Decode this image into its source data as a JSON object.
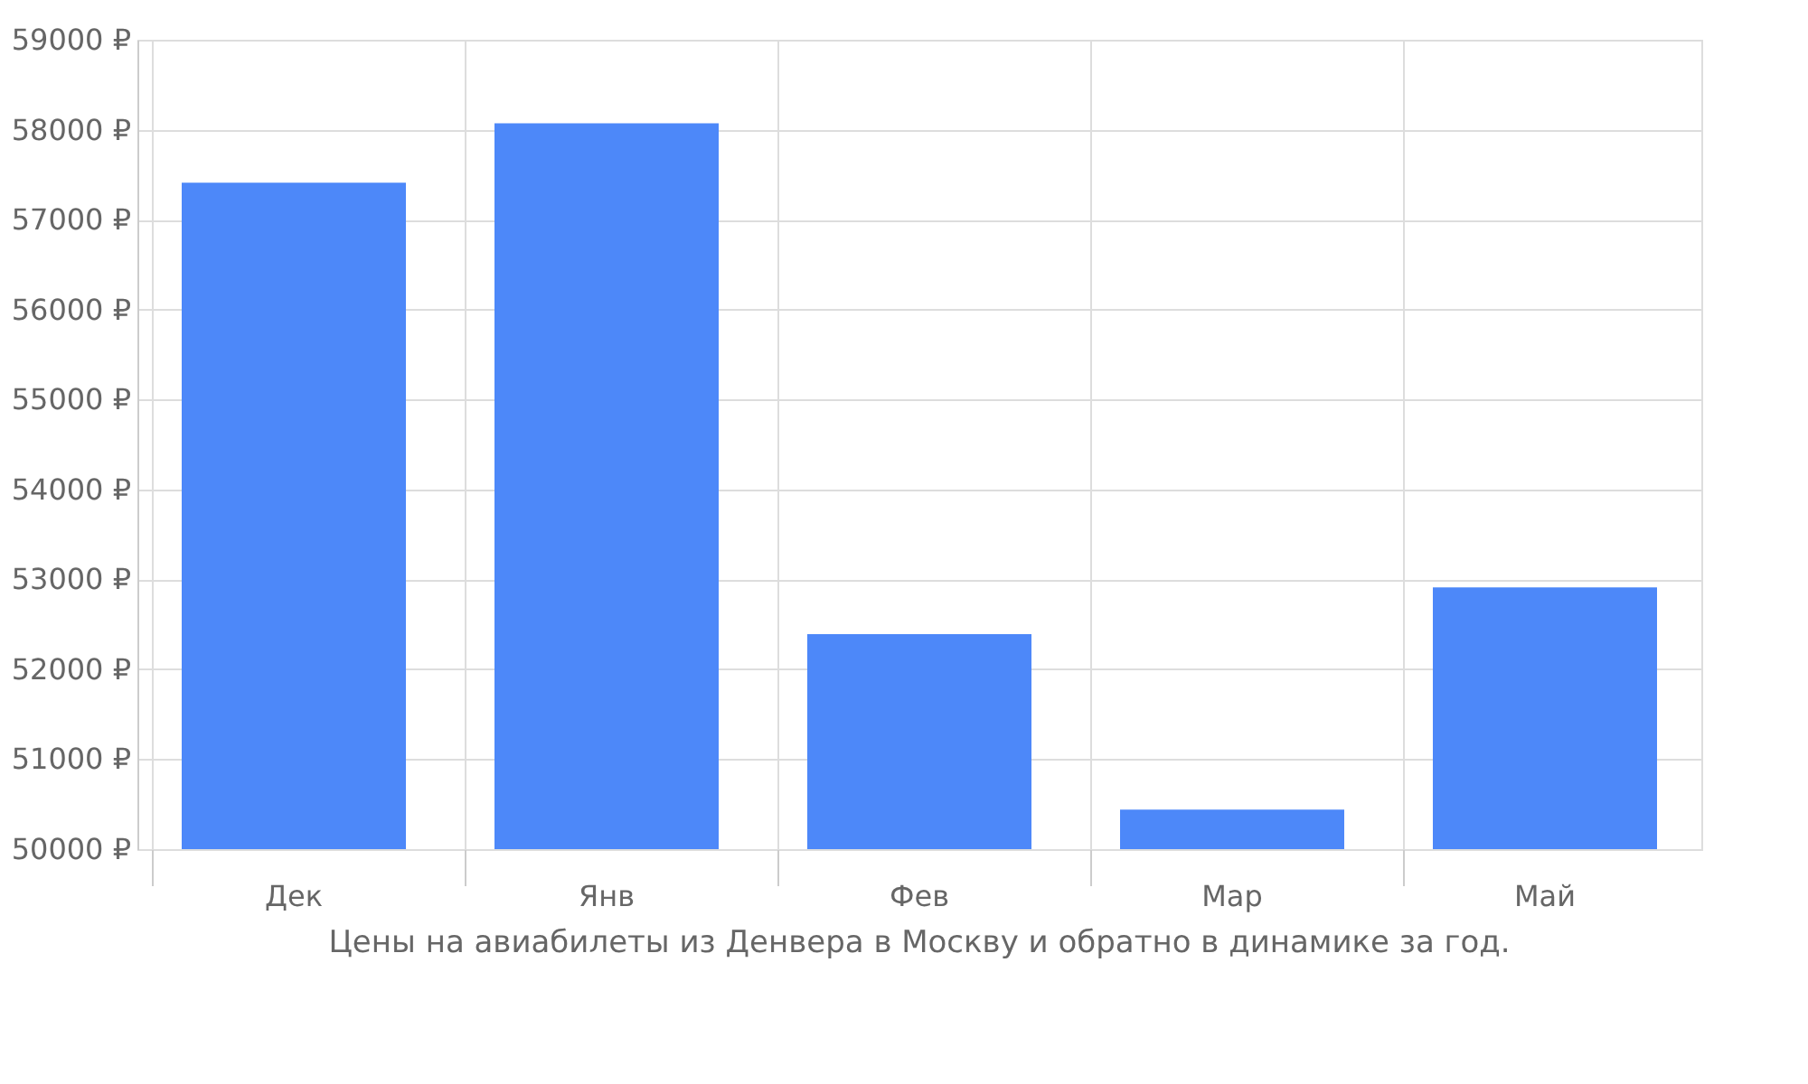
{
  "chart_data": {
    "type": "bar",
    "categories": [
      "Дек",
      "Янв",
      "Фев",
      "Мар",
      "Май"
    ],
    "values": [
      57410,
      58070,
      52390,
      50440,
      52910
    ],
    "color": "#4d88f9",
    "ylim": [
      50000,
      59000
    ],
    "yticks": [
      {
        "value": 50000,
        "label": "50000 ₽"
      },
      {
        "value": 51000,
        "label": "51000 ₽"
      },
      {
        "value": 52000,
        "label": "52000 ₽"
      },
      {
        "value": 53000,
        "label": "53000 ₽"
      },
      {
        "value": 54000,
        "label": "54000 ₽"
      },
      {
        "value": 55000,
        "label": "55000 ₽"
      },
      {
        "value": 56000,
        "label": "56000 ₽"
      },
      {
        "value": 57000,
        "label": "57000 ₽"
      },
      {
        "value": 58000,
        "label": "58000 ₽"
      },
      {
        "value": 59000,
        "label": "59000 ₽"
      }
    ],
    "grid": true,
    "annotations": [
      "Цены на авиабилеты из Денвера в Москву и обратно в динамике за год."
    ]
  }
}
